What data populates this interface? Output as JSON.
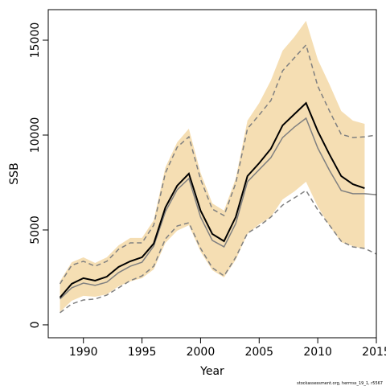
{
  "chart_data": {
    "type": "line",
    "xlabel": "Year",
    "ylabel": "SSB",
    "footnote": "stockassessment.org, herrnss_19_1, r5567",
    "x": [
      1988,
      1989,
      1990,
      1991,
      1992,
      1993,
      1994,
      1995,
      1996,
      1997,
      1998,
      1999,
      2000,
      2001,
      2002,
      2003,
      2004,
      2005,
      2006,
      2007,
      2008,
      2009,
      2010,
      2011,
      2012,
      2013,
      2014,
      2015
    ],
    "xlim": [
      1987,
      2015
    ],
    "xticks": [
      1990,
      1995,
      2000,
      2005,
      2010,
      2015
    ],
    "ylim": [
      -680,
      16610
    ],
    "yticks": [
      0,
      5000,
      10000,
      15000
    ],
    "band": {
      "color": "#f5deb3",
      "upper": [
        2290,
        3300,
        3560,
        3260,
        3560,
        4190,
        4580,
        4580,
        5510,
        8300,
        9620,
        10340,
        8010,
        6400,
        6020,
        7710,
        10760,
        11690,
        12880,
        14450,
        15170,
        16020,
        13980,
        12670,
        11270,
        10760,
        10590,
        null
      ],
      "lower": [
        680,
        1270,
        1530,
        1480,
        1610,
        2030,
        2290,
        2460,
        2920,
        4320,
        4960,
        5250,
        3860,
        2880,
        2500,
        3430,
        4790,
        5300,
        5680,
        6610,
        7030,
        7540,
        6230,
        5210,
        4360,
        4150,
        3980,
        null
      ]
    },
    "series": [
      {
        "color": "#808080",
        "dash": true,
        "values": [
          2160,
          3140,
          3350,
          3090,
          3350,
          3980,
          4320,
          4320,
          5250,
          8010,
          9360,
          9910,
          7670,
          6100,
          5760,
          7460,
          10340,
          11060,
          11820,
          13390,
          14070,
          14750,
          12580,
          11270,
          10040,
          9870,
          9910,
          10000
        ]
      },
      {
        "color": "#808080",
        "dash": true,
        "values": [
          640,
          1100,
          1310,
          1360,
          1570,
          1950,
          2330,
          2580,
          3090,
          4530,
          5210,
          5380,
          4030,
          3010,
          2580,
          3560,
          4830,
          5210,
          5680,
          6310,
          6690,
          7080,
          6060,
          5250,
          4410,
          4110,
          4030,
          3730
        ]
      },
      {
        "color": "#808080",
        "dash": false,
        "values": [
          1360,
          1950,
          2200,
          2080,
          2250,
          2750,
          3090,
          3300,
          4150,
          5970,
          7120,
          7710,
          5680,
          4450,
          4110,
          5340,
          7540,
          8180,
          8810,
          9870,
          10420,
          10890,
          9320,
          8140,
          7080,
          6910,
          6910,
          6860
        ]
      },
      {
        "color": "#000000",
        "dash": false,
        "width": 2,
        "values": [
          1440,
          2160,
          2460,
          2330,
          2540,
          3050,
          3350,
          3560,
          4280,
          6190,
          7330,
          7970,
          6020,
          4790,
          4410,
          5680,
          7840,
          8520,
          9280,
          10510,
          11100,
          11690,
          10210,
          8980,
          7840,
          7410,
          7200,
          null
        ]
      }
    ]
  }
}
